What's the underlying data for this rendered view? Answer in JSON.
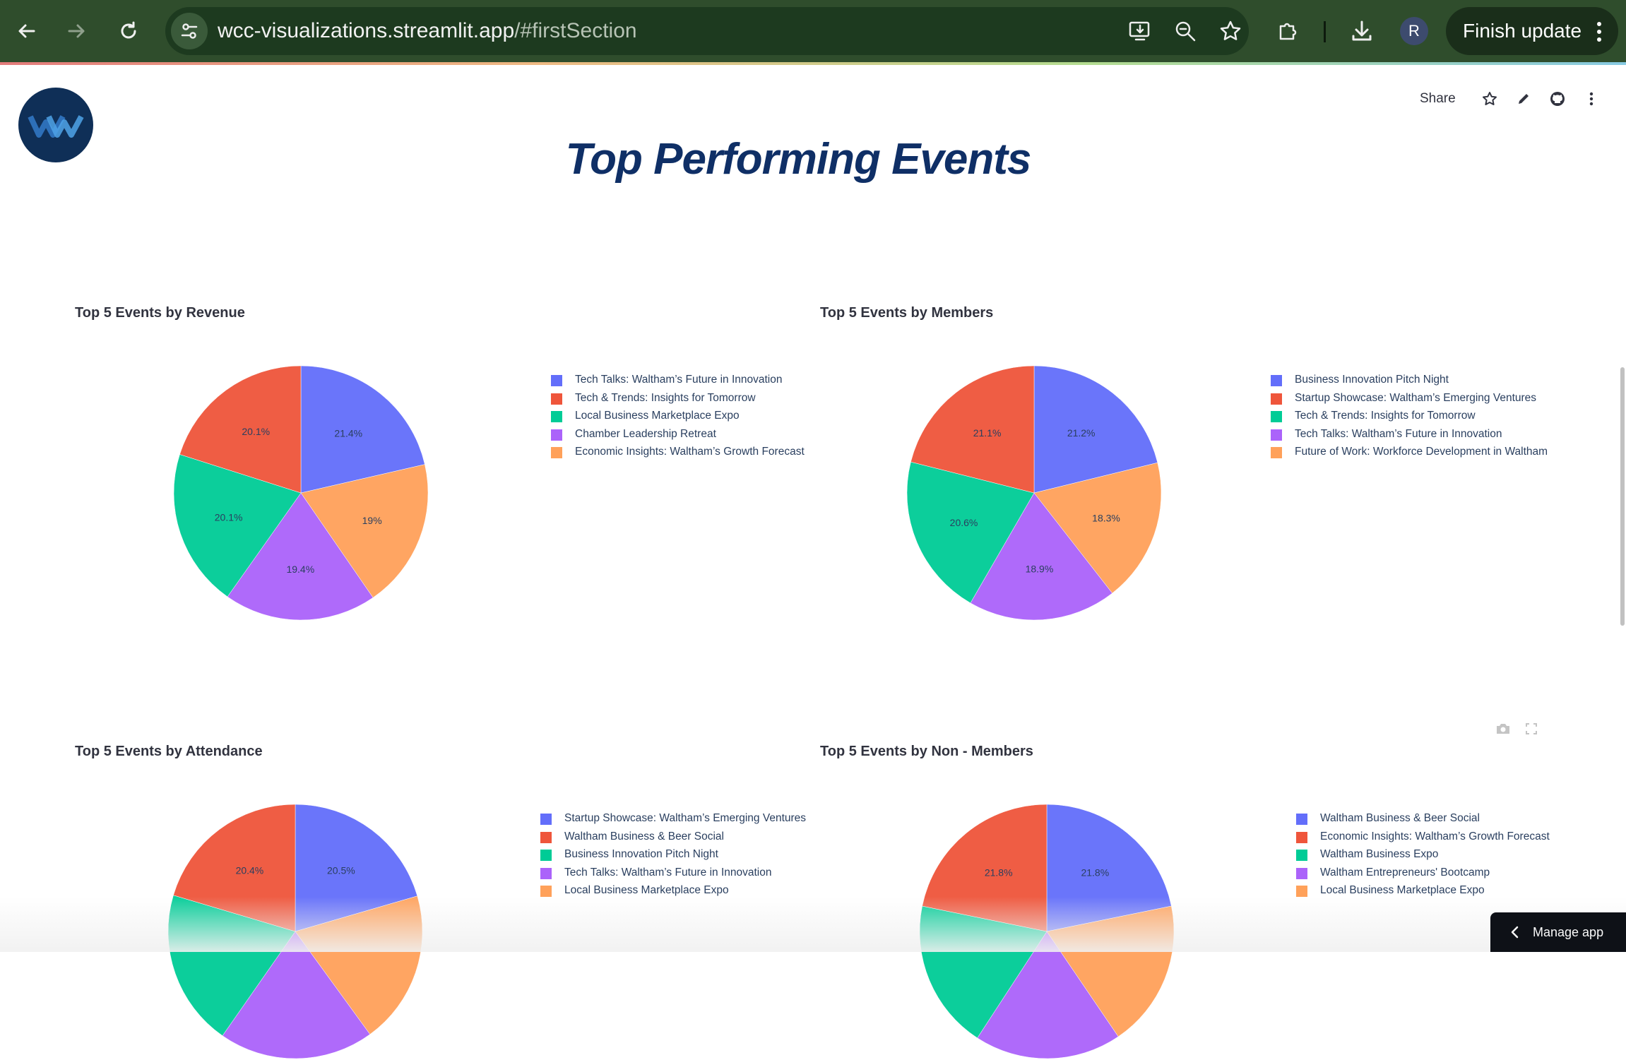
{
  "browser": {
    "url_host": "wcc-visualizations.streamlit.app",
    "url_path": "/#firstSection",
    "profile_initial": "R",
    "finish_update_label": "Finish update"
  },
  "app": {
    "share_label": "Share",
    "title": "Top Performing Events",
    "manage_app_label": "Manage app"
  },
  "colors": {
    "blue": "#636efa",
    "red": "#ef553b",
    "green": "#00cc96",
    "purple": "#ab63fa",
    "orange": "#ffa15a"
  },
  "chart_data": [
    {
      "type": "pie",
      "title": "Top 5 Events by Revenue",
      "labels": [
        "Tech Talks: Waltham’s Future in Innovation",
        "Tech & Trends: Insights for Tomorrow",
        "Local Business Marketplace Expo",
        "Chamber Leadership Retreat",
        "Economic Insights: Waltham’s Growth Forecast"
      ],
      "values": [
        21.4,
        20.1,
        20.1,
        19.4,
        19.0
      ],
      "value_labels": [
        "21.4%",
        "20.1%",
        "20.1%",
        "19.4%",
        "19%"
      ],
      "legend_position": "right"
    },
    {
      "type": "pie",
      "title": "Top 5 Events by Members",
      "labels": [
        "Business Innovation Pitch Night",
        "Startup Showcase: Waltham’s Emerging Ventures",
        "Tech & Trends: Insights for Tomorrow",
        "Tech Talks: Waltham’s Future in Innovation",
        "Future of Work: Workforce Development in Waltham"
      ],
      "values": [
        21.2,
        21.1,
        20.6,
        18.9,
        18.3
      ],
      "value_labels": [
        "21.2%",
        "21.1%",
        "20.6%",
        "18.9%",
        "18.3%"
      ],
      "legend_position": "right"
    },
    {
      "type": "pie",
      "title": "Top 5 Events by Attendance",
      "labels": [
        "Startup Showcase: Waltham’s Emerging Ventures",
        "Waltham Business & Beer Social",
        "Business Innovation Pitch Night",
        "Tech Talks: Waltham’s Future in Innovation",
        "Local Business Marketplace Expo"
      ],
      "values": [
        20.5,
        20.4,
        19.9,
        19.7,
        19.5
      ],
      "value_labels": [
        "20.5%",
        "20.4%",
        "",
        "",
        ""
      ],
      "legend_position": "right"
    },
    {
      "type": "pie",
      "title": "Top 5 Events by Non - Members",
      "labels": [
        "Waltham Business & Beer Social",
        "Economic Insights: Waltham’s Growth Forecast",
        "Waltham Business Expo",
        "Waltham Entrepreneurs' Bootcamp",
        "Local Business Marketplace Expo"
      ],
      "values": [
        21.8,
        21.8,
        19.0,
        18.7,
        18.7
      ],
      "value_labels": [
        "21.8%",
        "21.8%",
        "",
        "",
        ""
      ],
      "legend_position": "right"
    }
  ]
}
